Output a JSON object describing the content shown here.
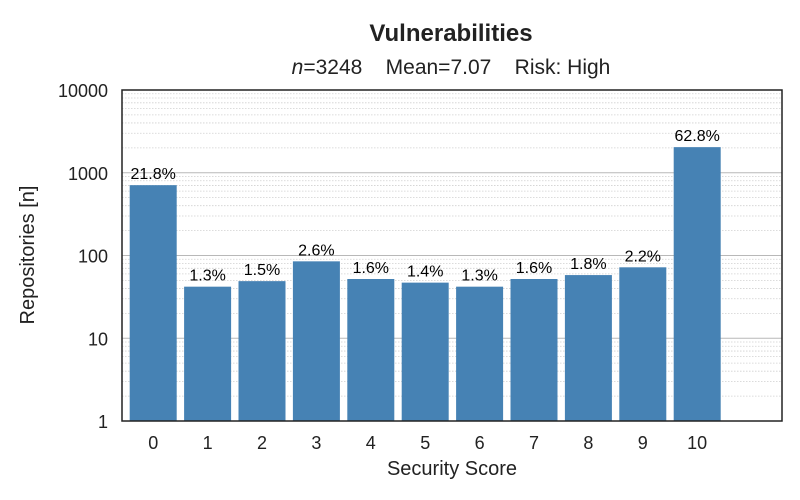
{
  "chart_data": {
    "type": "bar",
    "title": "Vulnerabilities",
    "subtitle": {
      "n_symbol": "n",
      "n_text": "=3248    Mean=7.07    Risk: High"
    },
    "xlabel": "Security Score",
    "ylabel": "Repositories [n]",
    "yscale": "log",
    "ylim": [
      1,
      10000
    ],
    "yticks": [
      "1",
      "10",
      "100",
      "1000",
      "10000"
    ],
    "grid": "y-major-and-minor",
    "categories": [
      "0",
      "1",
      "2",
      "3",
      "4",
      "5",
      "6",
      "7",
      "8",
      "9",
      "10"
    ],
    "values": [
      708,
      42,
      49,
      85,
      52,
      47,
      42,
      52,
      58,
      72,
      2040
    ],
    "labels": [
      "21.8%",
      "1.3%",
      "1.5%",
      "2.6%",
      "1.6%",
      "1.4%",
      "1.3%",
      "1.6%",
      "1.8%",
      "2.2%",
      "62.8%"
    ],
    "bar_color": "#4682b4"
  }
}
